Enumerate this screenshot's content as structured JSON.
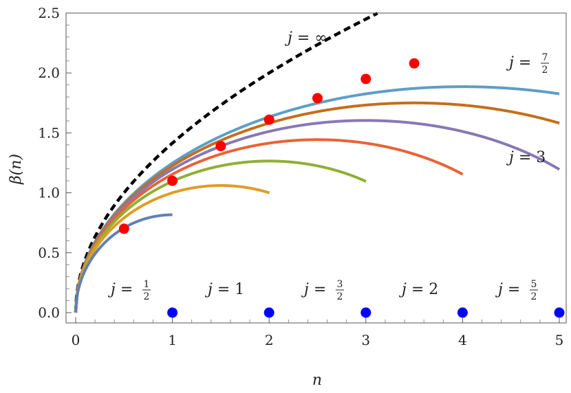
{
  "chart_data": {
    "type": "line",
    "title": "",
    "xlabel": "n",
    "ylabel": "β(n)",
    "xlim": [
      0,
      5
    ],
    "ylim": [
      0,
      2.5
    ],
    "xticks": [
      "0",
      "1",
      "2",
      "3",
      "4",
      "5"
    ],
    "yticks": [
      "0.0",
      "0.5",
      "1.0",
      "1.5",
      "2.0",
      "2.5"
    ],
    "grid": false,
    "series": [
      {
        "name": "j = 1/2",
        "j": 0.5,
        "color": "#5e81b5",
        "label_var": "j",
        "label_eq": "=",
        "label_num": "1",
        "label_den": "2",
        "label_text": "",
        "max_point": [
          0.5,
          0.7
        ],
        "end_point": [
          1,
          0
        ]
      },
      {
        "name": "j = 1",
        "j": 1,
        "color": "#e19c24",
        "label_var": "j",
        "label_eq": "=",
        "label_num": "",
        "label_den": "",
        "label_text": "1",
        "max_point": [
          1,
          1.1
        ],
        "end_point": [
          2,
          0
        ]
      },
      {
        "name": "j = 3/2",
        "j": 1.5,
        "color": "#8fb032",
        "label_var": "j",
        "label_eq": "=",
        "label_num": "3",
        "label_den": "2",
        "label_text": "",
        "max_point": [
          1.5,
          1.39
        ],
        "end_point": [
          3,
          0
        ]
      },
      {
        "name": "j = 2",
        "j": 2,
        "color": "#eb6235",
        "label_var": "j",
        "label_eq": "=",
        "label_num": "",
        "label_den": "",
        "label_text": "2",
        "max_point": [
          2,
          1.61
        ],
        "end_point": [
          4,
          0
        ]
      },
      {
        "name": "j = 5/2",
        "j": 2.5,
        "color": "#8778b3",
        "label_var": "j",
        "label_eq": "=",
        "label_num": "5",
        "label_den": "2",
        "label_text": "",
        "max_point": [
          2.5,
          1.79
        ],
        "end_point": [
          5,
          0
        ]
      },
      {
        "name": "j = 3",
        "j": 3,
        "color": "#c56e1a",
        "label_var": "j",
        "label_eq": "=",
        "label_num": "",
        "label_den": "",
        "label_text": "3",
        "max_point": [
          3,
          1.95
        ],
        "end_point": null
      },
      {
        "name": "j = 7/2",
        "j": 3.5,
        "color": "#5d9ec7",
        "label_var": "j",
        "label_eq": "=",
        "label_num": "7",
        "label_den": "2",
        "label_text": "",
        "max_point": [
          3.5,
          2.08
        ],
        "end_point": null
      }
    ],
    "limit_curve": {
      "name": "j = ∞",
      "label_var": "j",
      "label_eq": "=",
      "label_text": "∞",
      "color": "#000000",
      "style": "dashed"
    },
    "marker_colors": {
      "max": "#ff0000",
      "end": "#0000ff"
    }
  }
}
